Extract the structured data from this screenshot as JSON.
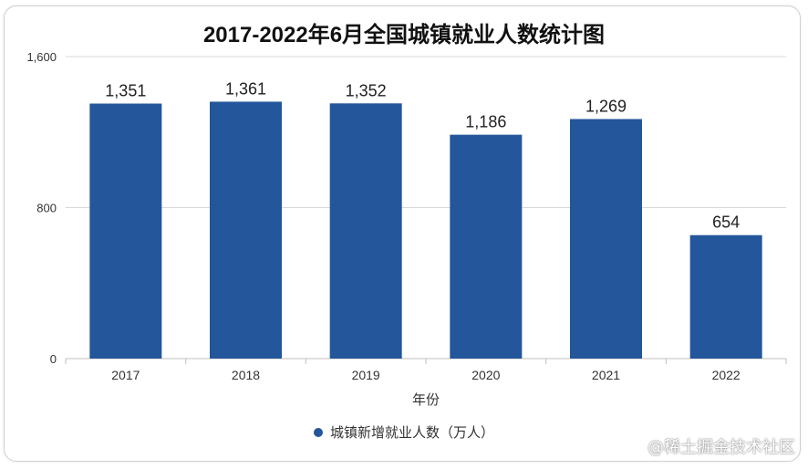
{
  "chart_data": {
    "type": "bar",
    "title": "2017-2022年6月全国城镇就业人数统计图",
    "xlabel": "年份",
    "ylabel": "",
    "categories": [
      "2017",
      "2018",
      "2019",
      "2020",
      "2021",
      "2022"
    ],
    "series": [
      {
        "name": "城镇新增就业人数（万人）",
        "values": [
          1351,
          1361,
          1352,
          1186,
          1269,
          654
        ]
      }
    ],
    "data_labels": [
      "1,351",
      "1,361",
      "1,352",
      "1,186",
      "1,269",
      "654"
    ],
    "y_ticks": [
      "0",
      "800",
      "1,600"
    ],
    "ylim": [
      0,
      1600
    ],
    "grid": true,
    "legend_position": "bottom",
    "bar_color": "#23569b"
  },
  "watermark": "@稀土掘金技术社区"
}
